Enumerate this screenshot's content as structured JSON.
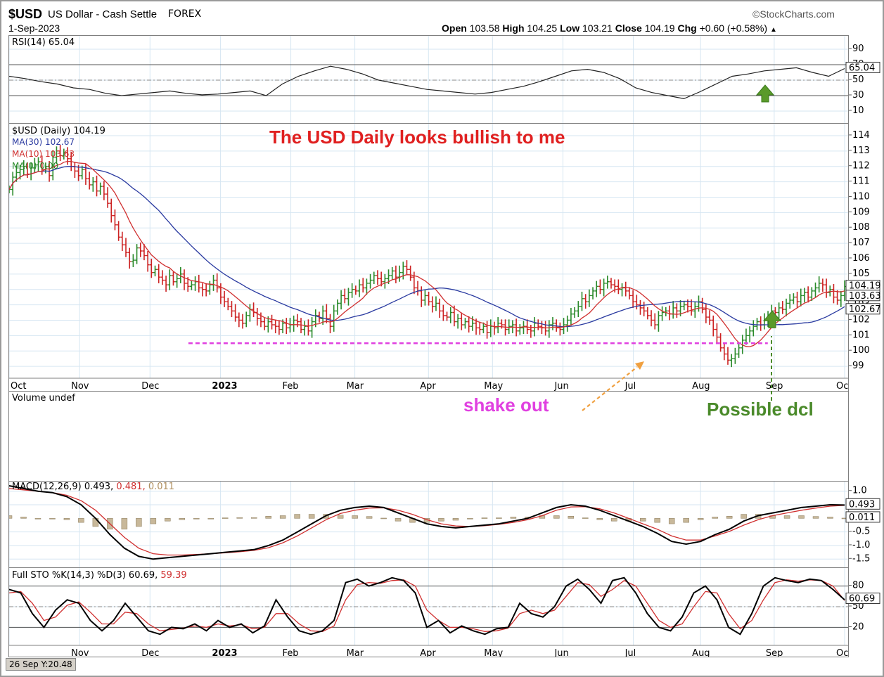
{
  "header": {
    "symbol": "$USD",
    "name": "US Dollar - Cash Settle",
    "exchange": "FOREX",
    "date": "1-Sep-2023",
    "brand": "©StockCharts.com",
    "open_label": "Open",
    "open": "103.58",
    "high_label": "High",
    "high": "104.25",
    "low_label": "Low",
    "low": "103.21",
    "close_label": "Close",
    "close": "104.19",
    "chg_label": "Chg",
    "chg": "+0.60 (+0.58%)"
  },
  "colors": {
    "up": "#2a8a2a",
    "down": "#cc2222",
    "ma30": "#2a3aa0",
    "ma10": "#d03030",
    "annotation_red": "#e02020",
    "annotation_magenta": "#e040e0",
    "annotation_green": "#4a8a2a",
    "arrow_orange": "#f0a040",
    "grid": "#d6e6f2"
  },
  "annotations": {
    "title": "The USD Daily looks bullish to me",
    "shake_out": "shake out",
    "possible_dcl": "Possible dcl"
  },
  "bottom_info": "26 Sep Y:20.48",
  "chart_data": [
    {
      "type": "line",
      "name": "rsi",
      "title": "RSI(14) 65.04",
      "ylim": [
        0,
        100
      ],
      "yticks": [
        "90",
        "70",
        "50",
        "30",
        "10"
      ],
      "ytick_values": [
        90,
        70,
        50,
        30,
        10
      ],
      "reference_lines": [
        70,
        50,
        30
      ],
      "last_value": "65.04",
      "series": [
        {
          "values": [
            55,
            52,
            48,
            45,
            40,
            38,
            33,
            30,
            32,
            34,
            36,
            33,
            31,
            32,
            34,
            36,
            30,
            45,
            55,
            62,
            68,
            64,
            58,
            50,
            46,
            42,
            38,
            36,
            34,
            32,
            34,
            38,
            42,
            48,
            55,
            62,
            64,
            60,
            52,
            40,
            34,
            30,
            26,
            35,
            45,
            55,
            58,
            62,
            64,
            66,
            60,
            55,
            65
          ]
        }
      ]
    },
    {
      "type": "ohlc",
      "name": "price",
      "title": "$USD (Daily) 104.19",
      "legend": [
        {
          "label": "MA(30) 102.67",
          "color": "#2a3aa0"
        },
        {
          "label": "MA(10) 103.63",
          "color": "#d03030"
        },
        {
          "label": "MA(0) 0.00",
          "color": "#2a8a2a"
        }
      ],
      "ylim": [
        98.5,
        114.5
      ],
      "yticks": [
        "114",
        "113",
        "112",
        "111",
        "110",
        "109",
        "108",
        "107",
        "106",
        "105",
        "104",
        "103",
        "102",
        "101",
        "100",
        "99"
      ],
      "ytick_values": [
        114,
        113,
        112,
        111,
        110,
        109,
        108,
        107,
        106,
        105,
        104,
        103,
        102,
        101,
        100,
        99
      ],
      "value_labels": [
        {
          "text": "104.19",
          "value": 104.19
        },
        {
          "text": "103.63",
          "value": 103.63
        },
        {
          "text": "102.67",
          "value": 102.67
        }
      ],
      "months": [
        "Oct",
        "Nov",
        "Dec",
        "2023",
        "Feb",
        "Mar",
        "Apr",
        "May",
        "Jun",
        "Jul",
        "Aug",
        "Sep",
        "Oct"
      ],
      "month_index": [
        0,
        22,
        44,
        66,
        88,
        108,
        131,
        151,
        173,
        195,
        216,
        239,
        261
      ],
      "close": [
        110.5,
        111.3,
        111.6,
        111.8,
        112.0,
        111.5,
        111.9,
        112.1,
        112.3,
        111.8,
        112.0,
        111.4,
        112.6,
        113.0,
        112.7,
        112.9,
        112.5,
        112.0,
        111.7,
        111.4,
        111.8,
        111.2,
        110.8,
        111.0,
        110.4,
        110.7,
        110.2,
        109.6,
        108.8,
        108.2,
        107.4,
        106.9,
        106.4,
        105.8,
        105.9,
        106.7,
        106.5,
        106.2,
        105.6,
        105.1,
        105.3,
        104.8,
        104.6,
        104.3,
        104.9,
        104.5,
        104.7,
        105.0,
        104.4,
        104.2,
        104.3,
        104.5,
        104.1,
        104.0,
        103.9,
        104.3,
        104.6,
        104.1,
        103.5,
        103.2,
        102.9,
        102.6,
        102.2,
        102.0,
        101.8,
        102.3,
        102.7,
        102.5,
        102.1,
        101.9,
        101.6,
        101.9,
        101.7,
        101.6,
        101.4,
        101.8,
        101.5,
        101.7,
        102.0,
        101.9,
        101.4,
        101.6,
        101.3,
        101.9,
        102.3,
        102.1,
        102.6,
        102.1,
        101.6,
        102.6,
        103.1,
        103.6,
        103.4,
        103.8,
        104.0,
        103.9,
        104.3,
        104.1,
        104.4,
        104.6,
        104.9,
        104.7,
        104.5,
        104.7,
        104.9,
        105.2,
        104.8,
        105.1,
        105.5,
        105.3,
        104.8,
        104.1,
        103.9,
        103.3,
        103.6,
        103.2,
        102.9,
        103.1,
        102.6,
        102.3,
        102.2,
        102.5,
        101.9,
        102.1,
        101.7,
        101.9,
        101.6,
        101.8,
        101.5,
        101.4,
        101.6,
        101.2,
        101.6,
        101.5,
        101.8,
        101.7,
        101.4,
        101.6,
        101.7,
        101.3,
        101.5,
        101.6,
        101.4,
        101.3,
        101.8,
        101.6,
        101.5,
        101.3,
        101.7,
        101.8,
        101.5,
        101.4,
        101.7,
        102.0,
        102.4,
        102.6,
        102.9,
        103.4,
        103.2,
        103.6,
        103.9,
        104.2,
        104.0,
        104.4,
        104.5,
        104.3,
        104.2,
        104.0,
        104.1,
        103.9,
        103.6,
        103.2,
        103.0,
        102.8,
        102.6,
        102.3,
        102.0,
        101.7,
        102.3,
        102.5,
        102.6,
        102.4,
        102.8,
        102.6,
        102.9,
        103.0,
        102.9,
        102.6,
        102.9,
        103.2,
        102.7,
        102.2,
        102.0,
        101.4,
        100.9,
        100.2,
        99.8,
        99.4,
        99.5,
        99.8,
        100.2,
        100.7,
        101.0,
        101.3,
        101.6,
        101.9,
        101.7,
        102.0,
        102.3,
        102.6,
        102.5,
        102.8,
        102.7,
        103.1,
        103.3,
        103.5,
        103.2,
        103.6,
        103.8,
        103.5,
        103.9,
        104.1,
        104.4,
        104.3,
        103.8,
        104.0,
        103.5,
        103.3,
        103.6,
        104.19
      ]
    },
    {
      "type": "bar",
      "name": "volume",
      "title": "Volume undef"
    },
    {
      "type": "line",
      "name": "macd",
      "title_parts": [
        {
          "text": "MACD(12,26,9) 0.493,",
          "color": "#000000"
        },
        {
          "text": " 0.481,",
          "color": "#d03030"
        },
        {
          "text": " 0.011",
          "color": "#b09060"
        }
      ],
      "ylim": [
        -1.7,
        1.2
      ],
      "yticks": [
        "1.0",
        "0.5",
        "-0.5",
        "-1.0",
        "-1.5"
      ],
      "ytick_values": [
        1.0,
        0.5,
        -0.5,
        -1.0,
        -1.5
      ],
      "value_labels": [
        {
          "text": "0.493",
          "value": 0.493
        },
        {
          "text": "0.011",
          "value": 0.011
        }
      ],
      "macd": [
        1.2,
        1.1,
        1.0,
        0.95,
        0.8,
        0.5,
        0.0,
        -0.6,
        -1.1,
        -1.4,
        -1.5,
        -1.45,
        -1.4,
        -1.35,
        -1.3,
        -1.25,
        -1.2,
        -1.15,
        -1.0,
        -0.8,
        -0.5,
        -0.2,
        0.1,
        0.3,
        0.4,
        0.45,
        0.4,
        0.2,
        0.0,
        -0.2,
        -0.3,
        -0.35,
        -0.3,
        -0.25,
        -0.2,
        -0.1,
        0.0,
        0.2,
        0.4,
        0.5,
        0.45,
        0.3,
        0.1,
        -0.1,
        -0.3,
        -0.55,
        -0.85,
        -0.95,
        -0.85,
        -0.6,
        -0.4,
        -0.1,
        0.1,
        0.2,
        0.3,
        0.4,
        0.45,
        0.5,
        0.49
      ],
      "signal": [
        1.1,
        1.05,
        1.0,
        0.95,
        0.85,
        0.65,
        0.3,
        -0.2,
        -0.7,
        -1.1,
        -1.3,
        -1.35,
        -1.35,
        -1.33,
        -1.3,
        -1.27,
        -1.23,
        -1.18,
        -1.08,
        -0.9,
        -0.65,
        -0.35,
        -0.05,
        0.18,
        0.3,
        0.38,
        0.39,
        0.3,
        0.15,
        -0.05,
        -0.2,
        -0.28,
        -0.3,
        -0.27,
        -0.22,
        -0.15,
        -0.05,
        0.1,
        0.3,
        0.42,
        0.43,
        0.35,
        0.2,
        0.0,
        -0.2,
        -0.4,
        -0.65,
        -0.8,
        -0.8,
        -0.65,
        -0.48,
        -0.25,
        -0.05,
        0.1,
        0.2,
        0.3,
        0.38,
        0.45,
        0.48
      ]
    },
    {
      "type": "line",
      "name": "stochastic",
      "title_parts": [
        {
          "text": "Full STO %K(14,3) %D(3) 60.69,",
          "color": "#000000"
        },
        {
          "text": " 59.39",
          "color": "#d03030"
        }
      ],
      "ylim": [
        0,
        100
      ],
      "yticks": [
        "80",
        "50",
        "20"
      ],
      "ytick_values": [
        80,
        50,
        20
      ],
      "reference_lines": [
        80,
        50,
        20
      ],
      "value_labels": [
        {
          "text": "60.69",
          "value": 60.69
        }
      ],
      "k": [
        75,
        70,
        40,
        20,
        45,
        60,
        55,
        30,
        15,
        30,
        55,
        35,
        15,
        10,
        20,
        18,
        25,
        15,
        30,
        20,
        25,
        12,
        22,
        60,
        35,
        15,
        10,
        15,
        30,
        85,
        90,
        80,
        85,
        92,
        88,
        70,
        20,
        30,
        12,
        22,
        15,
        10,
        18,
        20,
        55,
        40,
        35,
        50,
        80,
        90,
        75,
        55,
        88,
        92,
        70,
        40,
        20,
        15,
        35,
        70,
        80,
        60,
        20,
        10,
        40,
        80,
        92,
        88,
        85,
        90,
        88,
        75,
        60
      ],
      "d": [
        70,
        72,
        55,
        30,
        35,
        52,
        57,
        42,
        25,
        25,
        42,
        40,
        25,
        15,
        17,
        19,
        22,
        20,
        25,
        22,
        24,
        18,
        20,
        40,
        40,
        25,
        15,
        14,
        22,
        60,
        82,
        85,
        84,
        88,
        89,
        80,
        45,
        30,
        20,
        20,
        18,
        14,
        15,
        19,
        40,
        45,
        40,
        45,
        65,
        85,
        82,
        65,
        75,
        88,
        80,
        55,
        30,
        20,
        25,
        50,
        72,
        70,
        40,
        18,
        30,
        60,
        85,
        89,
        87,
        89,
        88,
        80,
        59
      ]
    }
  ]
}
